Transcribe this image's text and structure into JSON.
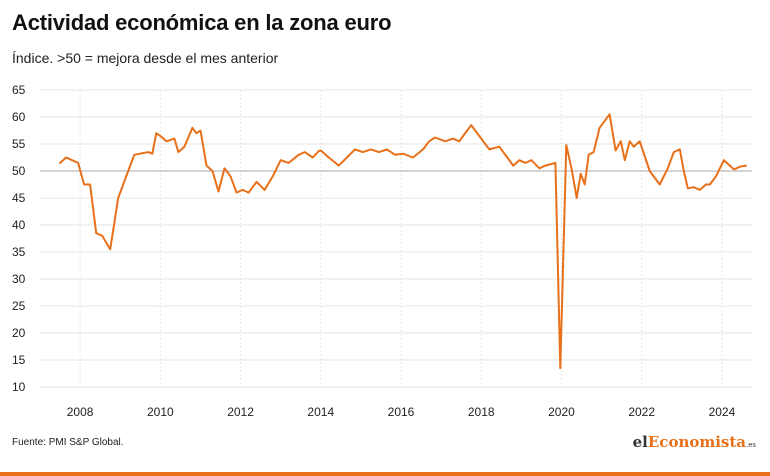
{
  "header": {
    "title": "Actividad económica en la zona euro",
    "subtitle": "Índice. >50 = mejora desde el mes anterior"
  },
  "footer": {
    "source": "Fuente: PMI S&P Global.",
    "brand_prefix": "el",
    "brand_accent": "Economista",
    "brand_suffix": ".es"
  },
  "colors": {
    "line": "#e8701a",
    "grid": "#e6e6e6",
    "reference": "#bbbbbb",
    "accent": "#e8701a"
  },
  "chart_data": {
    "type": "line",
    "title": "",
    "xlabel": "",
    "ylabel": "",
    "ylim": [
      10,
      65
    ],
    "xlim": [
      2007.0,
      2024.75
    ],
    "y_ticks": [
      10,
      15,
      20,
      25,
      30,
      35,
      40,
      45,
      50,
      55,
      60,
      65
    ],
    "x_ticks": [
      2008,
      2010,
      2012,
      2014,
      2016,
      2018,
      2020,
      2022,
      2024
    ],
    "reference_line": 50,
    "grid": true,
    "legend": "none",
    "series": [
      {
        "x": [
          2007.5,
          2007.65,
          2007.8,
          2007.95,
          2008.1,
          2008.25,
          2008.4,
          2008.55,
          2008.75,
          2008.95,
          2009.2,
          2009.35,
          2009.55,
          2009.7,
          2009.8,
          2009.9,
          2010.0,
          2010.15,
          2010.35,
          2010.45,
          2010.6,
          2010.8,
          2010.9,
          2011.0,
          2011.15,
          2011.3,
          2011.45,
          2011.6,
          2011.75,
          2011.9,
          2012.05,
          2012.2,
          2012.4,
          2012.6,
          2012.8,
          2013.0,
          2013.2,
          2013.45,
          2013.6,
          2013.8,
          2013.95,
          2014.0,
          2014.2,
          2014.45,
          2014.65,
          2014.85,
          2015.05,
          2015.25,
          2015.45,
          2015.65,
          2015.85,
          2016.05,
          2016.3,
          2016.55,
          2016.7,
          2016.85,
          2017.1,
          2017.3,
          2017.45,
          2017.55,
          2017.75,
          2017.95,
          2018.2,
          2018.45,
          2018.65,
          2018.8,
          2018.95,
          2019.1,
          2019.25,
          2019.45,
          2019.6,
          2019.85,
          2019.97,
          2020.12,
          2020.25,
          2020.38,
          2020.48,
          2020.58,
          2020.68,
          2020.8,
          2020.95,
          2021.2,
          2021.35,
          2021.48,
          2021.58,
          2021.7,
          2021.8,
          2021.95,
          2022.2,
          2022.45,
          2022.65,
          2022.8,
          2022.95,
          2023.05,
          2023.15,
          2023.3,
          2023.45,
          2023.6,
          2023.7,
          2023.85,
          2024.05,
          2024.3,
          2024.45,
          2024.6
        ],
        "y": [
          51.5,
          52.5,
          52.0,
          51.5,
          47.5,
          47.5,
          38.5,
          38.0,
          35.5,
          45.0,
          50.0,
          53.0,
          53.3,
          53.5,
          53.2,
          57.0,
          56.5,
          55.5,
          56.0,
          53.5,
          54.5,
          58.0,
          57.0,
          57.5,
          51.0,
          50.0,
          46.2,
          50.5,
          49.0,
          46.0,
          46.5,
          46.0,
          48.0,
          46.5,
          49.0,
          52.0,
          51.5,
          53.0,
          53.5,
          52.5,
          53.7,
          53.8,
          52.5,
          51.0,
          52.5,
          54.0,
          53.5,
          54.0,
          53.5,
          54.0,
          53.0,
          53.2,
          52.5,
          54.0,
          55.5,
          56.2,
          55.5,
          56.0,
          55.5,
          56.5,
          58.5,
          56.5,
          54.0,
          54.5,
          52.5,
          51.0,
          52.0,
          51.5,
          52.0,
          50.5,
          51.0,
          51.5,
          13.5,
          54.8,
          50.5,
          45.0,
          49.5,
          47.5,
          53.0,
          53.5,
          58.0,
          60.5,
          53.8,
          55.5,
          52.0,
          55.5,
          54.5,
          55.5,
          50.0,
          47.5,
          50.5,
          53.5,
          54.0,
          50.0,
          46.8,
          47.0,
          46.5,
          47.5,
          47.5,
          49.0,
          52.0,
          50.3,
          50.8,
          51.0
        ]
      }
    ]
  }
}
